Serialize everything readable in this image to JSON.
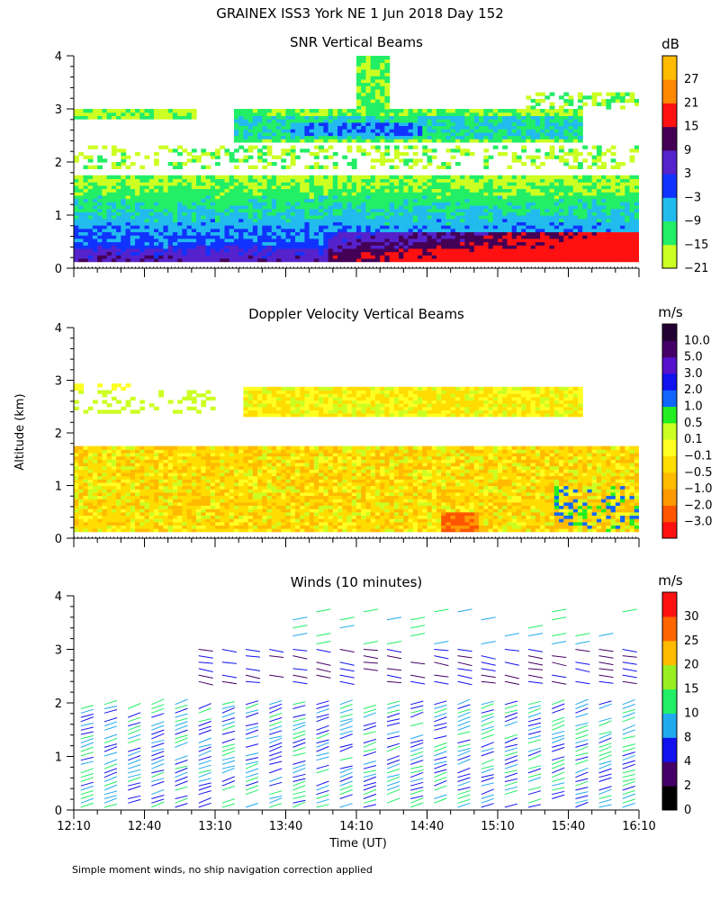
{
  "chart_data": {
    "type": "heatmap",
    "title": "GRAINEX ISS3 York NE    1 Jun 2018 Day 152",
    "xlabel": "Time (UT)",
    "ylabel": "Altitude (km)",
    "xlim": [
      12.1667,
      16.1667
    ],
    "ylim": [
      0,
      4
    ],
    "x_ticks": [
      "12:10",
      "12:40",
      "13:10",
      "13:40",
      "14:10",
      "14:40",
      "15:10",
      "15:40",
      "16:10"
    ],
    "y_ticks": [
      "0",
      "1",
      "2",
      "3",
      "4"
    ],
    "footnote": "Simple moment winds, no ship navigation correction applied",
    "panels": [
      {
        "title": "SNR Vertical Beams",
        "unit": "dB",
        "colorbar_ticks": [
          "27",
          "21",
          "15",
          "9",
          "3",
          "−3",
          "−9",
          "−15",
          "−21"
        ],
        "colors": [
          "#ccff22",
          "#22ee66",
          "#22bbee",
          "#1133ff",
          "#5522cc",
          "#440055",
          "#ff1111",
          "#ff8800",
          "#ffbb00"
        ]
      },
      {
        "title": "Doppler Velocity Vertical Beams",
        "unit": "m/s",
        "colorbar_ticks": [
          "10.0",
          "5.0",
          "3.0",
          "2.0",
          "1.0",
          "0.5",
          "0.1",
          "−0.1",
          "−0.5",
          "−1.0",
          "−2.0",
          "−3.0"
        ],
        "colors": [
          "#ff1111",
          "#ff5500",
          "#ff9900",
          "#ffbb00",
          "#ffdd00",
          "#ffff22",
          "#ccff22",
          "#22ee22",
          "#1166ff",
          "#1111ee",
          "#5511cc",
          "#440066",
          "#220033"
        ]
      },
      {
        "title": "Winds (10 minutes)",
        "unit": "m/s",
        "colorbar_ticks": [
          "30",
          "25",
          "20",
          "15",
          "10",
          "8",
          "4",
          "2",
          "0"
        ],
        "colors": [
          "#000000",
          "#440066",
          "#1111ee",
          "#22aaee",
          "#22ee66",
          "#99ee22",
          "#ffbb00",
          "#ff6600",
          "#ff1111"
        ]
      }
    ]
  }
}
